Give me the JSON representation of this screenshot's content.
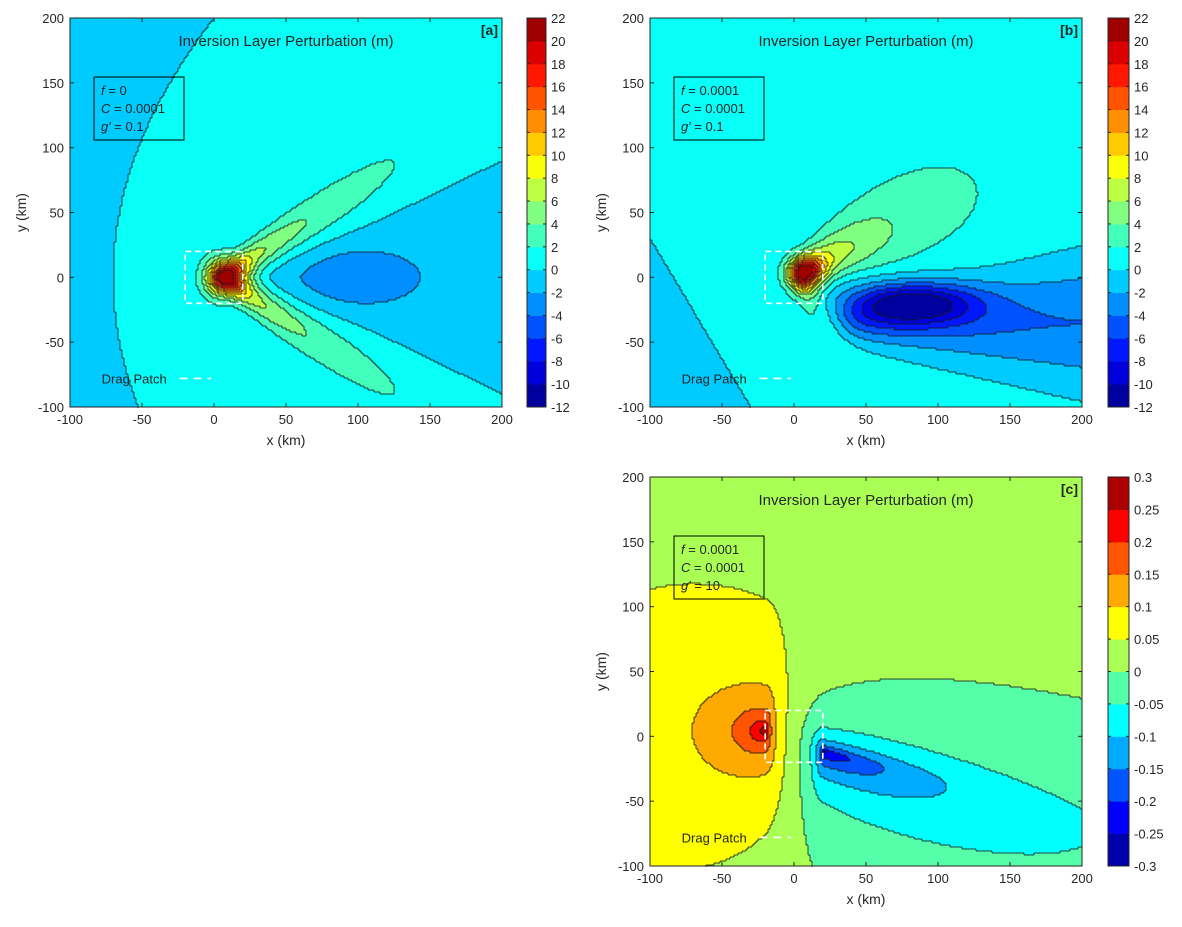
{
  "chart_data": [
    {
      "type": "heatmap",
      "style": "filled-contour",
      "panel_label": "[a]",
      "title": "Inversion Layer Perturbation (m)",
      "xlabel": "x (km)",
      "ylabel": "y (km)",
      "xlim": [
        -100,
        200
      ],
      "ylim": [
        -100,
        200
      ],
      "xticks": [
        "-100",
        "-50",
        "0",
        "50",
        "100",
        "150",
        "200"
      ],
      "yticks": [
        "-100",
        "-50",
        "0",
        "50",
        "100",
        "150",
        "200"
      ],
      "colormap": "jet",
      "colorbar_levels": [
        -12,
        -10,
        -8,
        -6,
        -4,
        -2,
        0,
        2,
        4,
        6,
        8,
        10,
        12,
        14,
        16,
        18,
        20,
        22
      ],
      "colorbar_labels": [
        "-12",
        "-10",
        "-8",
        "-6",
        "-4",
        "-2",
        "0",
        "2",
        "4",
        "6",
        "8",
        "10",
        "12",
        "14",
        "16",
        "18",
        "20",
        "22"
      ],
      "params": [
        {
          "symbol": "f",
          "value": " = 0"
        },
        {
          "symbol": "C",
          "value": " = 0.0001"
        },
        {
          "symbol": "g′",
          "value": " = 0.1"
        }
      ],
      "legend": {
        "label": "Drag Patch",
        "color": "#ffffff",
        "line": "dashed"
      },
      "drag_patch": {
        "x": [
          -20,
          20
        ],
        "y": [
          -20,
          20
        ]
      },
      "extrema": {
        "max": {
          "value": 22,
          "x": 5,
          "y": 0
        },
        "min": {
          "value": -4,
          "x": 105,
          "y": 0
        }
      }
    },
    {
      "type": "heatmap",
      "style": "filled-contour",
      "panel_label": "[b]",
      "title": "Inversion Layer Perturbation (m)",
      "xlabel": "x (km)",
      "ylabel": "y (km)",
      "xlim": [
        -100,
        200
      ],
      "ylim": [
        -100,
        200
      ],
      "xticks": [
        "-100",
        "-50",
        "0",
        "50",
        "100",
        "150",
        "200"
      ],
      "yticks": [
        "-100",
        "-50",
        "0",
        "50",
        "100",
        "150",
        "200"
      ],
      "colormap": "jet",
      "colorbar_levels": [
        -12,
        -10,
        -8,
        -6,
        -4,
        -2,
        0,
        2,
        4,
        6,
        8,
        10,
        12,
        14,
        16,
        18,
        20,
        22
      ],
      "colorbar_labels": [
        "-12",
        "-10",
        "-8",
        "-6",
        "-4",
        "-2",
        "0",
        "2",
        "4",
        "6",
        "8",
        "10",
        "12",
        "14",
        "16",
        "18",
        "20",
        "22"
      ],
      "params": [
        {
          "symbol": "f",
          "value": " = 0.0001"
        },
        {
          "symbol": "C",
          "value": " = 0.0001"
        },
        {
          "symbol": "g′",
          "value": " = 0.1"
        }
      ],
      "legend": {
        "label": "Drag Patch",
        "color": "#ffffff",
        "line": "dashed"
      },
      "drag_patch": {
        "x": [
          -20,
          20
        ],
        "y": [
          -20,
          20
        ]
      },
      "extrema": {
        "max": {
          "value": 20,
          "x": 5,
          "y": 3
        },
        "min": {
          "value": -12,
          "x": 80,
          "y": -20
        }
      }
    },
    {
      "type": "heatmap",
      "style": "filled-contour",
      "panel_label": "[c]",
      "title": "Inversion Layer Perturbation (m)",
      "xlabel": "x (km)",
      "ylabel": "y (km)",
      "xlim": [
        -100,
        200
      ],
      "ylim": [
        -100,
        200
      ],
      "xticks": [
        "-100",
        "-50",
        "0",
        "50",
        "100",
        "150",
        "200"
      ],
      "yticks": [
        "-100",
        "-50",
        "0",
        "50",
        "100",
        "150",
        "200"
      ],
      "colormap": "jet",
      "colorbar_levels": [
        -0.3,
        -0.25,
        -0.2,
        -0.15,
        -0.1,
        -0.05,
        0,
        0.05,
        0.1,
        0.15,
        0.2,
        0.25,
        0.3
      ],
      "colorbar_labels": [
        "-0.3",
        "-0.25",
        "-0.2",
        "-0.15",
        "-0.1",
        "-0.05",
        "0",
        "0.05",
        "0.1",
        "0.15",
        "0.2",
        "0.25",
        "0.3"
      ],
      "params": [
        {
          "symbol": "f",
          "value": " = 0.0001"
        },
        {
          "symbol": "C",
          "value": " = 0.0001"
        },
        {
          "symbol": "g′",
          "value": " = 10"
        }
      ],
      "legend": {
        "label": "Drag Patch",
        "color": "#ffffff",
        "line": "dashed"
      },
      "drag_patch": {
        "x": [
          -20,
          20
        ],
        "y": [
          -20,
          20
        ]
      },
      "extrema": {
        "max": {
          "value": 0.25,
          "x": -20,
          "y": 4
        },
        "min": {
          "value": -0.3,
          "x": 20,
          "y": -15
        }
      }
    }
  ]
}
